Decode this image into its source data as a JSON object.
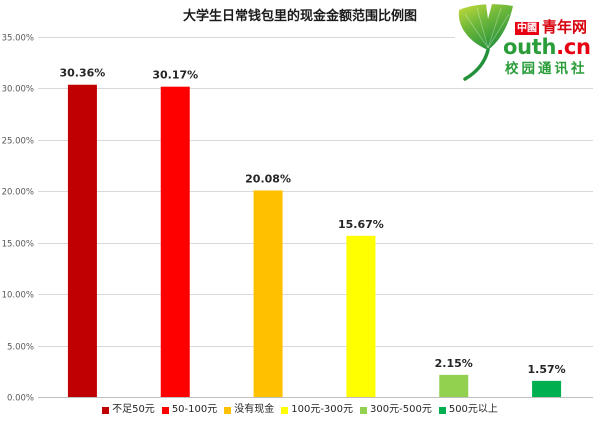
{
  "chart_data": {
    "type": "bar",
    "title": "大学生日常钱包里的现金金额范围比例图",
    "categories": [
      "不足50元",
      "50-100元",
      "没有现金",
      "100元-300元",
      "300元-500元",
      "500元以上"
    ],
    "values": [
      30.36,
      30.17,
      20.08,
      15.67,
      2.15,
      1.57
    ],
    "value_labels": [
      "30.36%",
      "30.17%",
      "20.08%",
      "15.67%",
      "2.15%",
      "1.57%"
    ],
    "colors": [
      "#C00000",
      "#FF0000",
      "#FFC000",
      "#FFFF00",
      "#92D050",
      "#00B050"
    ],
    "ylim": [
      0,
      35
    ],
    "yticks": [
      0,
      5,
      10,
      15,
      20,
      25,
      30,
      35
    ],
    "ytick_labels": [
      "0.00%",
      "5.00%",
      "10.00%",
      "15.00%",
      "20.00%",
      "25.00%",
      "30.00%",
      "35.00%"
    ],
    "grid": true,
    "legend": "bottom"
  },
  "logo": {
    "badge": "中國",
    "name": "青年网",
    "domain_main": "outh",
    "domain_tld": ".cn",
    "tagline": "校园通讯社",
    "icon": "ginkgo-leaf-icon",
    "colors": {
      "green": "#2a9d3a",
      "red": "#e60012"
    }
  }
}
